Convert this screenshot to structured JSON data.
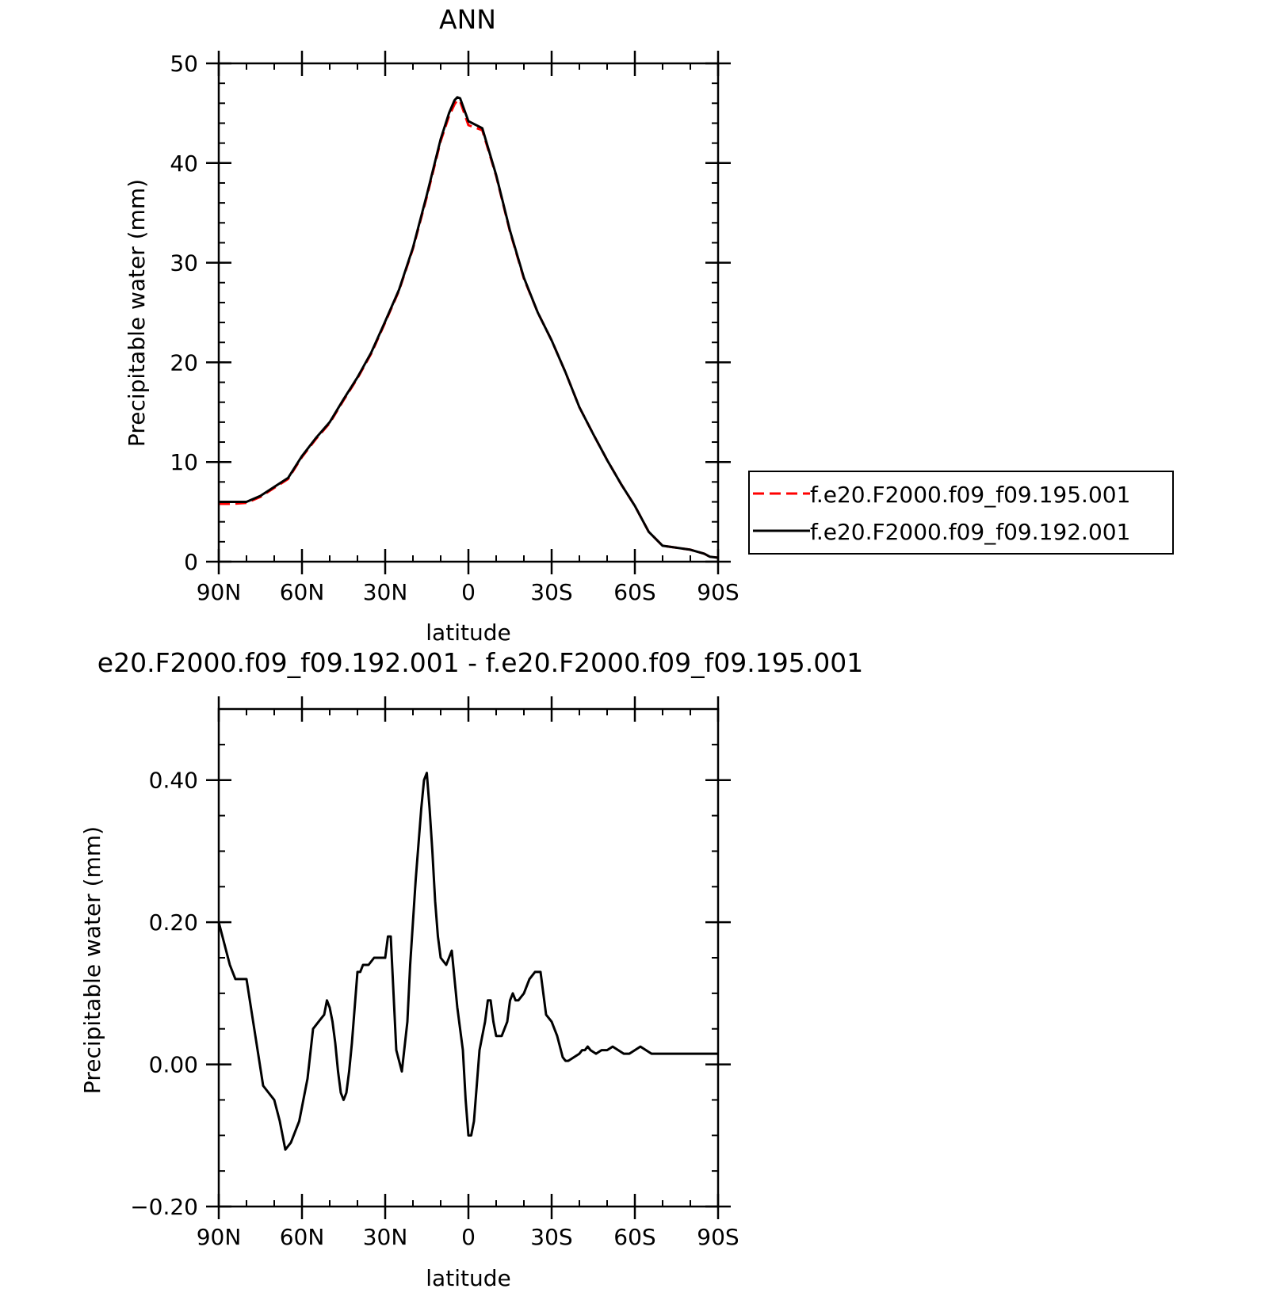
{
  "colors": {
    "background": "#ffffff",
    "axis": "#000000",
    "series_red": "#ff0000",
    "series_black": "#000000"
  },
  "chart_data": [
    {
      "type": "line",
      "title": "ANN",
      "xlabel": "latitude",
      "ylabel": "Precipitable water (mm)",
      "xlim": [
        90,
        -90
      ],
      "ylim": [
        0,
        50
      ],
      "xticks": [
        {
          "v": 90,
          "label": "90N"
        },
        {
          "v": 60,
          "label": "60N"
        },
        {
          "v": 30,
          "label": "30N"
        },
        {
          "v": 0,
          "label": "0"
        },
        {
          "v": -30,
          "label": "30S"
        },
        {
          "v": -60,
          "label": "60S"
        },
        {
          "v": -90,
          "label": "90S"
        }
      ],
      "yticks": [
        {
          "v": 0,
          "label": "0"
        },
        {
          "v": 10,
          "label": "10"
        },
        {
          "v": 20,
          "label": "20"
        },
        {
          "v": 30,
          "label": "30"
        },
        {
          "v": 40,
          "label": "40"
        },
        {
          "v": 50,
          "label": "50"
        }
      ],
      "grid": false,
      "legend_position": "right",
      "series": [
        {
          "name": "f.e20.F2000.f09_f09.195.001",
          "color": "#ff0000",
          "dash": "dashed",
          "x": [
            90,
            85,
            80,
            75,
            70,
            65,
            60,
            55,
            50,
            45,
            40,
            35,
            30,
            25,
            20,
            15,
            10,
            7,
            5,
            4,
            3,
            0,
            -5,
            -10,
            -15,
            -20,
            -25,
            -30,
            -35,
            -40,
            -45,
            -50,
            -55,
            -60,
            -65,
            -70,
            -75,
            -80,
            -85,
            -87,
            -90
          ],
          "y": [
            5.8,
            5.8,
            5.9,
            6.5,
            7.4,
            8.3,
            10.5,
            12.3,
            13.9,
            16.2,
            18.4,
            20.9,
            24.0,
            27.2,
            31.4,
            36.6,
            42.2,
            44.7,
            45.9,
            46.3,
            46.2,
            43.8,
            43.3,
            38.7,
            33.1,
            28.4,
            25.0,
            22.2,
            19.0,
            15.5,
            12.8,
            10.2,
            7.8,
            5.6,
            3.0,
            1.6,
            1.4,
            1.2,
            0.8,
            0.5,
            0.4
          ]
        },
        {
          "name": "f.e20.F2000.f09_f09.192.001",
          "color": "#000000",
          "dash": "solid",
          "x": [
            90,
            85,
            80,
            75,
            70,
            65,
            60,
            55,
            50,
            45,
            40,
            35,
            30,
            25,
            20,
            15,
            10,
            7,
            5,
            4,
            3,
            0,
            -5,
            -10,
            -15,
            -20,
            -25,
            -30,
            -35,
            -40,
            -45,
            -50,
            -55,
            -60,
            -65,
            -70,
            -75,
            -80,
            -85,
            -87,
            -90
          ],
          "y": [
            6.0,
            6.0,
            6.0,
            6.6,
            7.5,
            8.4,
            10.6,
            12.4,
            14.0,
            16.3,
            18.5,
            21.0,
            24.1,
            27.3,
            31.5,
            36.8,
            42.4,
            45.0,
            46.3,
            46.6,
            46.5,
            44.2,
            43.5,
            38.8,
            33.2,
            28.5,
            25.0,
            22.2,
            19.0,
            15.5,
            12.8,
            10.2,
            7.8,
            5.6,
            3.0,
            1.6,
            1.4,
            1.2,
            0.8,
            0.5,
            0.4
          ]
        }
      ]
    },
    {
      "type": "line",
      "title": "e20.F2000.f09_f09.192.001 - f.e20.F2000.f09_f09.195.001",
      "xlabel": "latitude",
      "ylabel": "Precipitable water (mm)",
      "xlim": [
        90,
        -90
      ],
      "ylim": [
        -0.2,
        0.5
      ],
      "xticks": [
        {
          "v": 90,
          "label": "90N"
        },
        {
          "v": 60,
          "label": "60N"
        },
        {
          "v": 30,
          "label": "30N"
        },
        {
          "v": 0,
          "label": "0"
        },
        {
          "v": -30,
          "label": "30S"
        },
        {
          "v": -60,
          "label": "60S"
        },
        {
          "v": -90,
          "label": "90S"
        }
      ],
      "yticks": [
        {
          "v": -0.2,
          "label": "−0.20"
        },
        {
          "v": 0,
          "label": "0.00"
        },
        {
          "v": 0.2,
          "label": "0.20"
        },
        {
          "v": 0.4,
          "label": "0.40"
        }
      ],
      "grid": false,
      "series": [
        {
          "color": "#000000",
          "dash": "solid",
          "x": [
            90,
            88,
            86,
            84,
            82,
            80,
            78,
            76,
            74,
            72,
            70,
            68,
            66,
            64,
            62,
            61,
            60,
            58,
            56,
            54,
            52,
            51,
            50,
            49,
            48,
            47,
            46,
            45,
            44,
            43,
            42,
            41,
            40,
            39,
            38,
            36,
            34,
            33,
            32,
            31,
            30,
            29,
            28,
            26,
            24,
            22,
            21,
            20,
            19,
            18,
            17,
            16,
            15,
            14,
            13,
            12,
            11,
            10,
            8,
            6,
            4,
            2,
            1,
            0,
            -1,
            -2,
            -4,
            -6,
            -7,
            -8,
            -9,
            -10,
            -11,
            -12,
            -14,
            -15,
            -16,
            -17,
            -18,
            -20,
            -22,
            -24,
            -26,
            -27,
            -28,
            -30,
            -32,
            -34,
            -35,
            -36,
            -38,
            -40,
            -41,
            -42,
            -43,
            -44,
            -46,
            -48,
            -50,
            -52,
            -54,
            -56,
            -58,
            -60,
            -62,
            -64,
            -66,
            -68,
            -70,
            -72,
            -74,
            -76,
            -78,
            -80,
            -82,
            -84,
            -86,
            -88,
            -90
          ],
          "y": [
            0.2,
            0.17,
            0.14,
            0.12,
            0.12,
            0.12,
            0.07,
            0.02,
            -0.03,
            -0.04,
            -0.05,
            -0.08,
            -0.12,
            -0.11,
            -0.09,
            -0.08,
            -0.06,
            -0.02,
            0.05,
            0.06,
            0.07,
            0.09,
            0.08,
            0.06,
            0.03,
            -0.01,
            -0.04,
            -0.05,
            -0.04,
            -0.01,
            0.03,
            0.08,
            0.13,
            0.13,
            0.14,
            0.14,
            0.15,
            0.15,
            0.15,
            0.15,
            0.15,
            0.18,
            0.18,
            0.02,
            -0.01,
            0.06,
            0.14,
            0.2,
            0.26,
            0.31,
            0.36,
            0.4,
            0.41,
            0.36,
            0.3,
            0.23,
            0.18,
            0.15,
            0.14,
            0.16,
            0.08,
            0.02,
            -0.05,
            -0.1,
            -0.1,
            -0.08,
            0.02,
            0.06,
            0.09,
            0.09,
            0.06,
            0.04,
            0.04,
            0.04,
            0.06,
            0.09,
            0.1,
            0.09,
            0.09,
            0.1,
            0.12,
            0.13,
            0.13,
            0.1,
            0.07,
            0.06,
            0.04,
            0.01,
            0.005,
            0.005,
            0.01,
            0.015,
            0.02,
            0.02,
            0.025,
            0.02,
            0.015,
            0.02,
            0.02,
            0.025,
            0.02,
            0.015,
            0.015,
            0.02,
            0.025,
            0.02,
            0.015,
            0.015,
            0.015,
            0.015,
            0.015,
            0.015,
            0.015,
            0.015,
            0.015,
            0.015,
            0.015,
            0.015,
            0.015
          ]
        }
      ]
    }
  ]
}
